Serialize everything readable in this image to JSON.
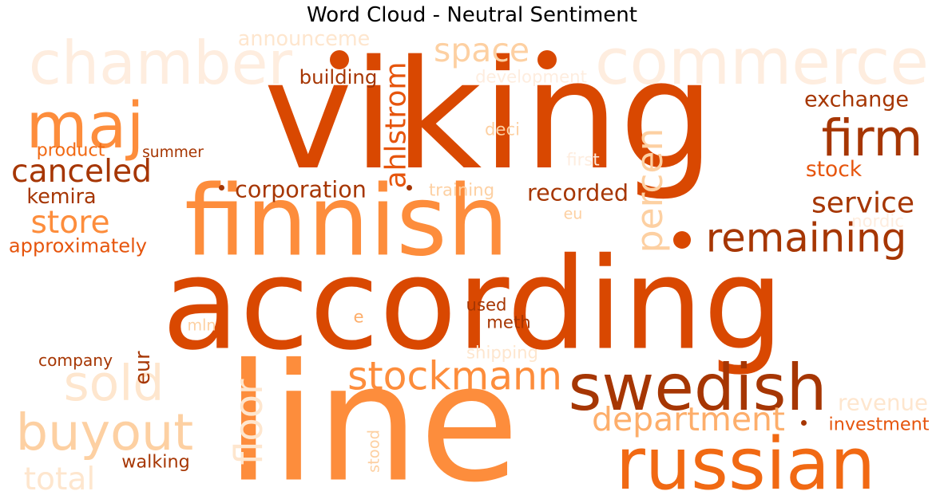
{
  "chart_data": {
    "type": "wordcloud",
    "title": "Word Cloud - Neutral Sentiment",
    "colormap": "Oranges",
    "background": "#ffffff",
    "words": [
      {
        "text": "according",
        "color": "#d94801"
      },
      {
        "text": "line",
        "color": "#fd8d3c"
      },
      {
        "text": "viking",
        "color": "#d94801"
      },
      {
        "text": "finnish",
        "color": "#fd8d3c"
      },
      {
        "text": "russian",
        "color": "#f16913"
      },
      {
        "text": "swedish",
        "color": "#a63603"
      },
      {
        "text": "commerce",
        "color": "#feeddf"
      },
      {
        "text": "chamber",
        "color": "#feeddf"
      },
      {
        "text": "maj",
        "color": "#fd8d3c"
      },
      {
        "text": "firm",
        "color": "#a63603"
      },
      {
        "text": "buyout",
        "color": "#fdd0a2"
      },
      {
        "text": "remaining",
        "color": "#a63603"
      },
      {
        "text": "stockmann",
        "color": "#fd8d3c"
      },
      {
        "text": "sold",
        "color": "#fee6ce"
      },
      {
        "text": "department",
        "color": "#fdae6b"
      },
      {
        "text": "floor",
        "color": "#fee6ce"
      },
      {
        "text": "percen",
        "color": "#fdd0a2"
      },
      {
        "text": "ahlstrom",
        "color": "#e6550d"
      },
      {
        "text": "service",
        "color": "#a63603"
      },
      {
        "text": "space",
        "color": "#fdd0a2"
      },
      {
        "text": "canceled",
        "color": "#a63603"
      },
      {
        "text": "store",
        "color": "#fd8d3c"
      },
      {
        "text": "corporation",
        "color": "#a63603"
      },
      {
        "text": "recorded",
        "color": "#a63603"
      },
      {
        "text": "total",
        "color": "#fee6ce"
      },
      {
        "text": "exchange",
        "color": "#a63603"
      },
      {
        "text": "kemira",
        "color": "#a63603"
      },
      {
        "text": "stock",
        "color": "#e6550d"
      },
      {
        "text": "revenue",
        "color": "#fee6ce"
      },
      {
        "text": "announceme",
        "color": "#fee6ce"
      },
      {
        "text": "building",
        "color": "#a63603"
      },
      {
        "text": "development",
        "color": "#feeddf"
      },
      {
        "text": "approximately",
        "color": "#e6550d"
      },
      {
        "text": "walking",
        "color": "#a63603"
      },
      {
        "text": "investment",
        "color": "#e6550d"
      },
      {
        "text": "product",
        "color": "#f16913"
      },
      {
        "text": "summer",
        "color": "#a63603"
      },
      {
        "text": "training",
        "color": "#fdd0a2"
      },
      {
        "text": "shipping",
        "color": "#fee6ce"
      },
      {
        "text": "deci",
        "color": "#fdd0a2"
      },
      {
        "text": "first",
        "color": "#feeddf"
      },
      {
        "text": "used",
        "color": "#a63603"
      },
      {
        "text": "meth",
        "color": "#a63603"
      },
      {
        "text": "company",
        "color": "#a63603"
      },
      {
        "text": "nordic",
        "color": "#feeddf"
      },
      {
        "text": "mln",
        "color": "#fdd0a2"
      },
      {
        "text": "eur",
        "color": "#a63603"
      },
      {
        "text": "stood",
        "color": "#fdd0a2"
      },
      {
        "text": "eu",
        "color": "#fdd0a2"
      },
      {
        "text": "e",
        "color": "#fdae6b"
      }
    ],
    "dots": [
      {
        "color": "#d94801"
      },
      {
        "color": "#d94801"
      },
      {
        "color": "#d94801"
      },
      {
        "color": "#a63603"
      },
      {
        "color": "#a63603"
      },
      {
        "color": "#a63603"
      }
    ]
  }
}
